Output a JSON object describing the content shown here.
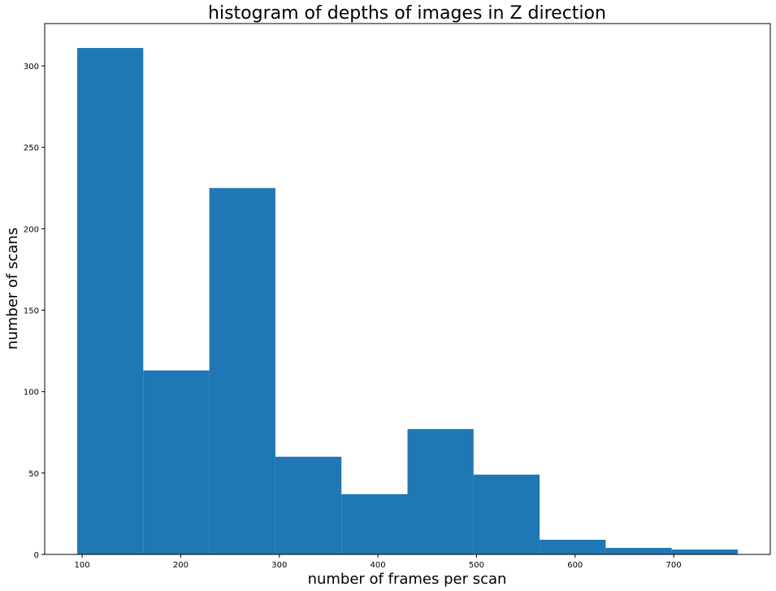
{
  "chart_data": {
    "type": "bar",
    "title": "histogram of depths of images in Z direction",
    "xlabel": "number of frames per scan",
    "ylabel": "number of scans",
    "bin_edges": [
      95,
      162,
      229,
      296,
      363,
      430,
      497,
      564,
      631,
      698,
      765
    ],
    "values": [
      311,
      113,
      225,
      60,
      37,
      77,
      49,
      9,
      4,
      3
    ],
    "xlim": [
      62,
      798
    ],
    "ylim": [
      0,
      326
    ],
    "x_ticks": [
      100,
      200,
      300,
      400,
      500,
      600,
      700
    ],
    "y_ticks": [
      0,
      50,
      100,
      150,
      200,
      250,
      300
    ],
    "bar_color": "#1f77b4",
    "grid": false,
    "legend": false
  }
}
